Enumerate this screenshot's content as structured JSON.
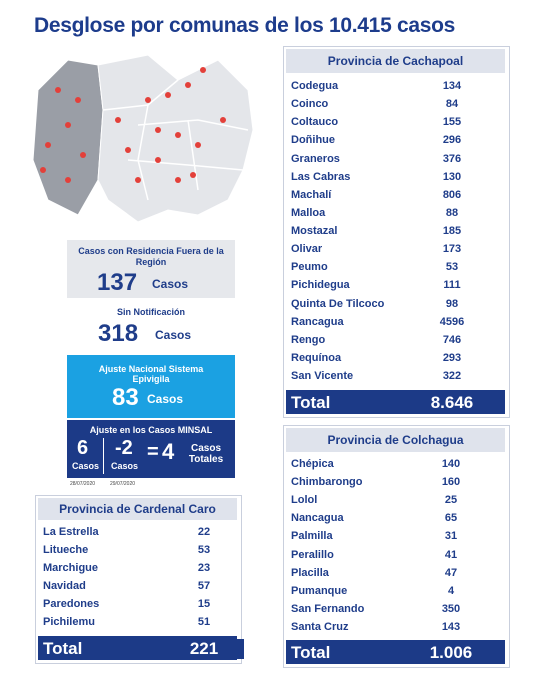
{
  "title": "Desglose por comunas de los 10.415 casos",
  "outside": {
    "label": "Casos con Residencia Fuera de la Región",
    "value": 137,
    "unit": "Casos"
  },
  "no_notification": {
    "label": "Sin Notificación",
    "value": 318,
    "unit": "Casos"
  },
  "epivigila": {
    "label": "Ajuste Nacional Sistema Epivigila",
    "value": 83,
    "unit": "Casos"
  },
  "minsal": {
    "label": "Ajuste en los Casos MINSAL",
    "first": {
      "value": 6,
      "unit": "Casos",
      "date": "28/07/2020"
    },
    "second": {
      "value": -2,
      "unit": "Casos",
      "date": "29/07/2020"
    },
    "equals": "=",
    "result": {
      "value": 4,
      "unit": "Casos Totales"
    }
  },
  "cachapoal": {
    "title": "Provincia de Cachapoal",
    "rows": [
      [
        "Codegua",
        134
      ],
      [
        "Coinco",
        84
      ],
      [
        "Coltauco",
        155
      ],
      [
        "Doñihue",
        296
      ],
      [
        "Graneros",
        376
      ],
      [
        "Las Cabras",
        130
      ],
      [
        "Machalí",
        806
      ],
      [
        "Malloa",
        88
      ],
      [
        "Mostazal",
        185
      ],
      [
        "Olivar",
        173
      ],
      [
        "Peumo",
        53
      ],
      [
        "Pichidegua",
        111
      ],
      [
        "Quinta De Tilcoco",
        98
      ],
      [
        "Rancagua",
        4596
      ],
      [
        "Rengo",
        746
      ],
      [
        "Requínoa",
        293
      ],
      [
        "San Vicente",
        322
      ]
    ],
    "total_label": "Total",
    "total": "8.646"
  },
  "colchagua": {
    "title": "Provincia de Colchagua",
    "rows": [
      [
        "Chépica",
        140
      ],
      [
        "Chimbarongo",
        160
      ],
      [
        "Lolol",
        25
      ],
      [
        "Nancagua",
        65
      ],
      [
        "Palmilla",
        31
      ],
      [
        "Peralillo",
        41
      ],
      [
        "Placilla",
        47
      ],
      [
        "Pumanque",
        4
      ],
      [
        "San Fernando",
        350
      ],
      [
        "Santa Cruz",
        143
      ]
    ],
    "total_label": "Total",
    "total": "1.006"
  },
  "cardenal_caro": {
    "title": "Provincia de Cardenal Caro",
    "rows": [
      [
        "La Estrella",
        22
      ],
      [
        "Litueche",
        53
      ],
      [
        "Marchigue",
        23
      ],
      [
        "Navidad",
        57
      ],
      [
        "Paredones",
        15
      ],
      [
        "Pichilemu",
        51
      ]
    ],
    "total_label": "Total",
    "total": 221
  }
}
